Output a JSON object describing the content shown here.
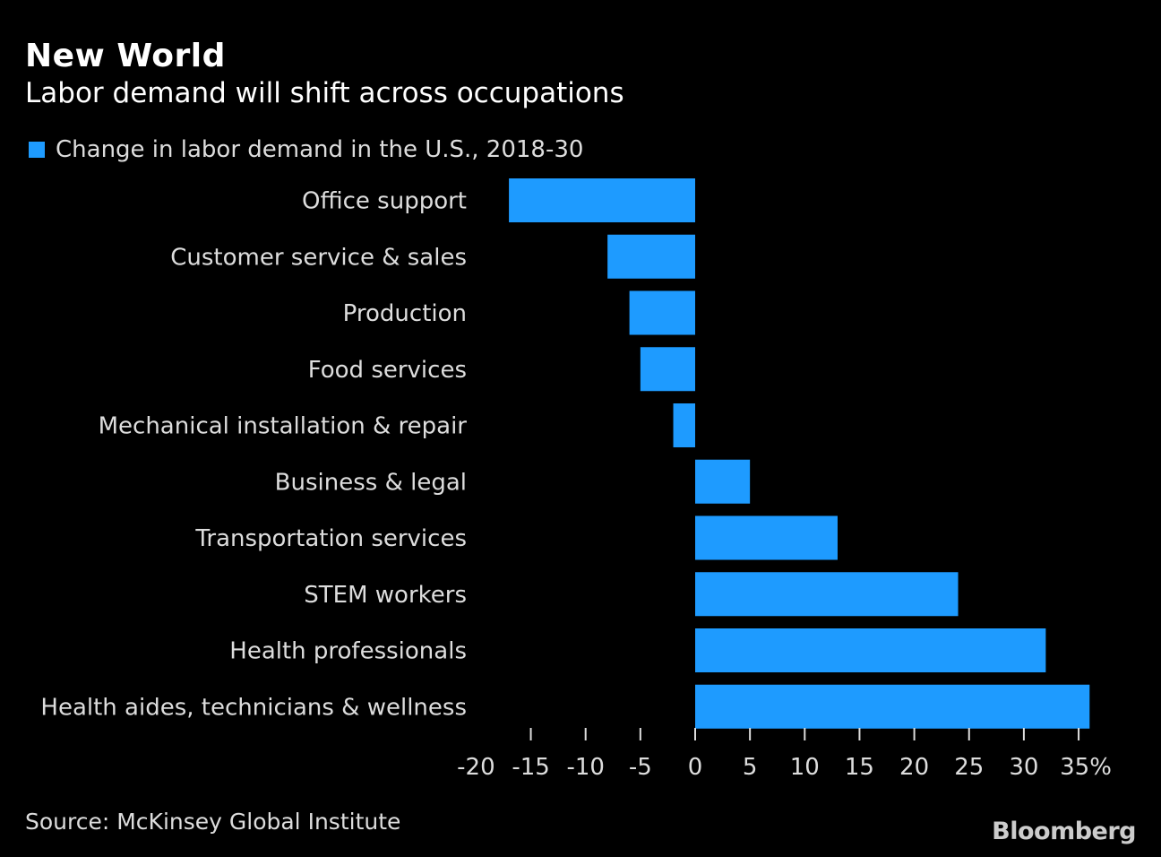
{
  "chart_data": {
    "type": "bar",
    "orientation": "horizontal",
    "title": "New World",
    "subtitle": "Labor demand will shift across occupations",
    "categories": [
      "Office support",
      "Customer service & sales",
      "Production",
      "Food services",
      "Mechanical installation & repair",
      "Business & legal",
      "Transportation services",
      "STEM workers",
      "Health professionals",
      "Health aides, technicians & wellness"
    ],
    "series": [
      {
        "name": "Change in labor demand in the U.S., 2018-30",
        "values": [
          -17,
          -8,
          -6,
          -5,
          -2,
          5,
          13,
          24,
          32,
          36
        ],
        "color": "#1e9bff"
      }
    ],
    "xlim": [
      -20,
      36
    ],
    "xticks": [
      -20,
      -15,
      -10,
      -5,
      0,
      5,
      10,
      15,
      20,
      25,
      30,
      35
    ],
    "xtick_labels": [
      "-20",
      "-15",
      "-10",
      "-5",
      "0",
      "5",
      "10",
      "15",
      "20",
      "25",
      "30",
      "35%"
    ],
    "grid": false,
    "legend_position": "top-left",
    "source": "Source: McKinsey Global Institute"
  },
  "branding": {
    "logo": "Bloomberg"
  },
  "colors": {
    "background": "#000000",
    "bar": "#1e9bff"
  }
}
